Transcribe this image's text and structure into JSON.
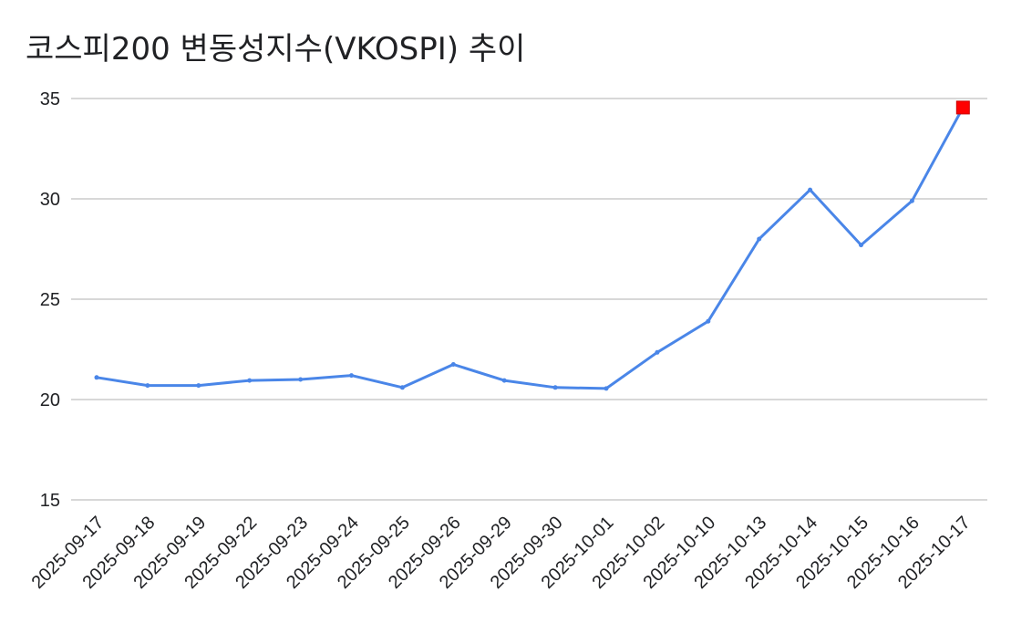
{
  "chart_data": {
    "type": "line",
    "title": "코스피200 변동성지수(VKOSPI) 추이",
    "xlabel": "",
    "ylabel": "",
    "categories": [
      "2025-09-17",
      "2025-09-18",
      "2025-09-19",
      "2025-09-22",
      "2025-09-23",
      "2025-09-24",
      "2025-09-25",
      "2025-09-26",
      "2025-09-29",
      "2025-09-30",
      "2025-10-01",
      "2025-10-02",
      "2025-10-10",
      "2025-10-13",
      "2025-10-14",
      "2025-10-15",
      "2025-10-16",
      "2025-10-17"
    ],
    "series": [
      {
        "values": [
          21.1,
          20.7,
          20.7,
          20.95,
          21.0,
          21.2,
          20.6,
          21.75,
          20.95,
          20.6,
          20.55,
          22.35,
          23.9,
          28.0,
          30.45,
          27.7,
          29.9,
          34.55
        ],
        "color": "#4a86e8",
        "highlight_last_color": "#ff0000"
      }
    ],
    "ylim": [
      15,
      35
    ],
    "yticks": [
      15,
      20,
      25,
      30,
      35
    ],
    "grid": true,
    "legend": "none"
  }
}
